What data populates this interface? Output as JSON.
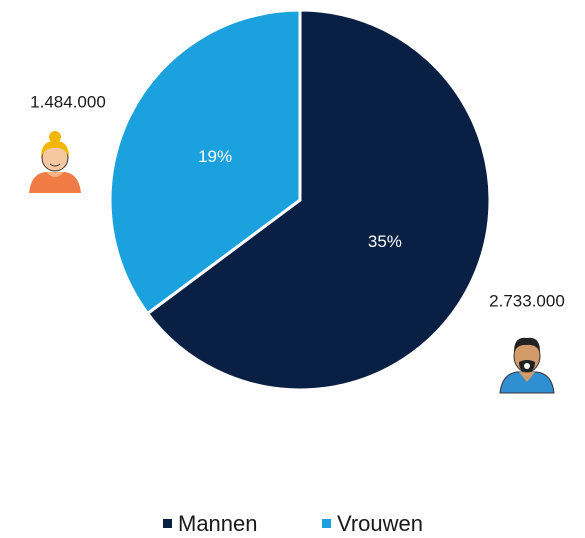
{
  "chart_data": {
    "type": "pie",
    "categories": [
      "Mannen",
      "Vrouwen"
    ],
    "values": [
      2733000,
      1484000
    ],
    "value_labels": [
      "2.733.000",
      "1.484.000"
    ],
    "share_labels": [
      "35%",
      "19%"
    ],
    "colors": [
      "#0a1f44",
      "#1ba1de"
    ],
    "legend": "bottom"
  }
}
